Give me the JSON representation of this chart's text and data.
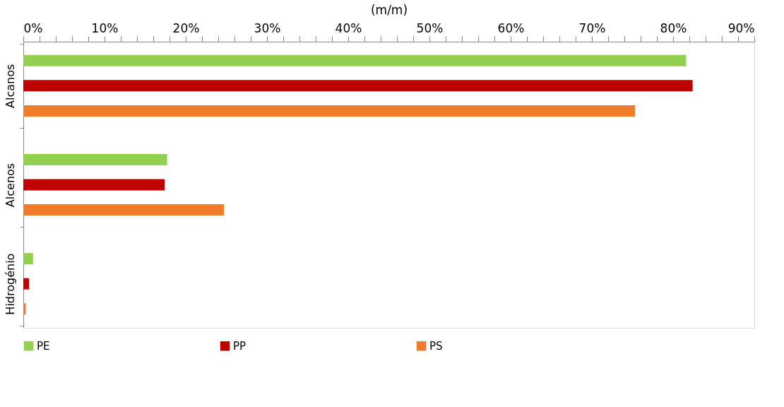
{
  "chart_data": {
    "type": "bar",
    "orientation": "horizontal",
    "xlabel": "(m/m)",
    "categories": [
      "Alcanos",
      "Alcenos",
      "Hidrogénio"
    ],
    "series": [
      {
        "name": "PE",
        "color": "#92d050",
        "values": [
          81.6,
          17.7,
          1.2
        ]
      },
      {
        "name": "PP",
        "color": "#c00000",
        "values": [
          82.4,
          17.4,
          0.7
        ]
      },
      {
        "name": "PS",
        "color": "#f07b2b",
        "values": [
          75.3,
          24.7,
          0.3
        ]
      }
    ],
    "xlim": [
      0,
      90
    ],
    "xticks": [
      {
        "value": 0,
        "label": "0%"
      },
      {
        "value": 2,
        "label": null
      },
      {
        "value": 4,
        "label": null
      },
      {
        "value": 6,
        "label": null
      },
      {
        "value": 8,
        "label": null
      },
      {
        "value": 10,
        "label": "10%"
      },
      {
        "value": 12,
        "label": null
      },
      {
        "value": 14,
        "label": null
      },
      {
        "value": 16,
        "label": null
      },
      {
        "value": 18,
        "label": null
      },
      {
        "value": 20,
        "label": "20%"
      },
      {
        "value": 22,
        "label": null
      },
      {
        "value": 24,
        "label": null
      },
      {
        "value": 26,
        "label": null
      },
      {
        "value": 28,
        "label": null
      },
      {
        "value": 30,
        "label": "30%"
      },
      {
        "value": 32,
        "label": null
      },
      {
        "value": 34,
        "label": null
      },
      {
        "value": 36,
        "label": null
      },
      {
        "value": 38,
        "label": null
      },
      {
        "value": 40,
        "label": "40%"
      },
      {
        "value": 42,
        "label": null
      },
      {
        "value": 44,
        "label": null
      },
      {
        "value": 46,
        "label": null
      },
      {
        "value": 48,
        "label": null
      },
      {
        "value": 50,
        "label": "50%"
      },
      {
        "value": 52,
        "label": null
      },
      {
        "value": 54,
        "label": null
      },
      {
        "value": 56,
        "label": null
      },
      {
        "value": 58,
        "label": null
      },
      {
        "value": 60,
        "label": "60%"
      },
      {
        "value": 62,
        "label": null
      },
      {
        "value": 64,
        "label": null
      },
      {
        "value": 66,
        "label": null
      },
      {
        "value": 68,
        "label": null
      },
      {
        "value": 70,
        "label": "70%"
      },
      {
        "value": 72,
        "label": null
      },
      {
        "value": 74,
        "label": null
      },
      {
        "value": 76,
        "label": null
      },
      {
        "value": 78,
        "label": null
      },
      {
        "value": 80,
        "label": "80%"
      },
      {
        "value": 82,
        "label": null
      },
      {
        "value": 84,
        "label": null
      },
      {
        "value": 86,
        "label": null
      },
      {
        "value": 88,
        "label": null
      },
      {
        "value": 90,
        "label": "90%"
      }
    ],
    "grid": false,
    "legend": "bottom"
  }
}
